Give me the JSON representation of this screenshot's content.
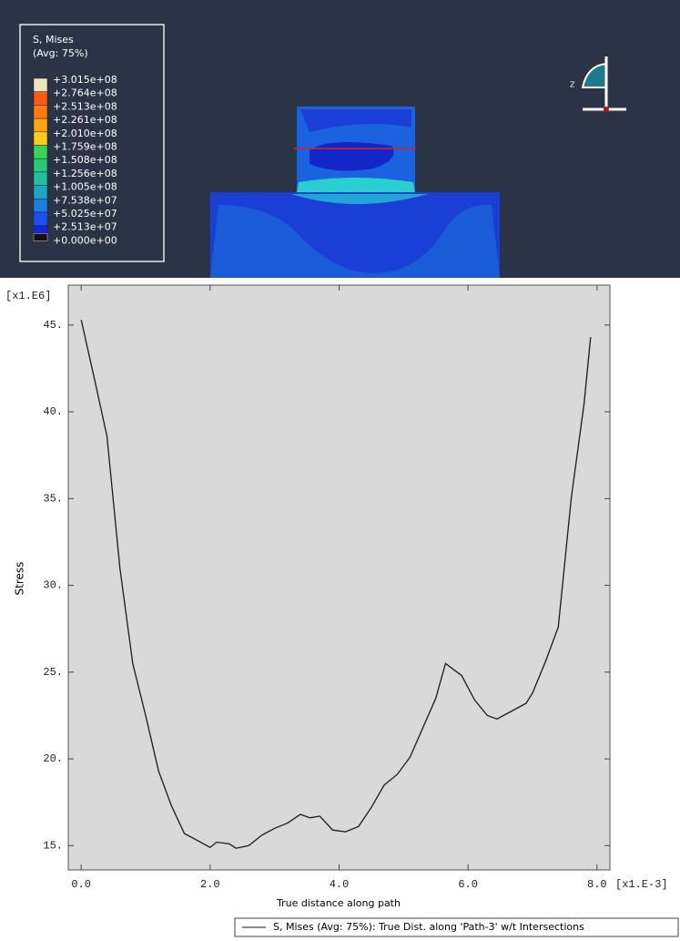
{
  "viewport": {
    "legend_title": "S, Mises",
    "legend_subtitle": "(Avg: 75%)",
    "levels": [
      "+3.015e+08",
      "+2.764e+08",
      "+2.513e+08",
      "+2.261e+08",
      "+2.010e+08",
      "+1.759e+08",
      "+1.508e+08",
      "+1.256e+08",
      "+1.005e+08",
      "+7.538e+07",
      "+5.025e+07",
      "+2.513e+07",
      "+0.000e+00"
    ],
    "level_colors": [
      "#efe6bf",
      "#ff5a14",
      "#ff7c14",
      "#ffa414",
      "#ffc81e",
      "#3cd25a",
      "#2ac878",
      "#22c0a0",
      "#1ea6c8",
      "#1a7ee0",
      "#1a50f0",
      "#1426d8"
    ],
    "triad_label": "Z"
  },
  "chart_data": {
    "type": "line",
    "y_unit": "[x1.E6]",
    "x_unit": "[x1.E-3]",
    "ylabel": "Stress",
    "xlabel": "True distance along path",
    "x": [
      0.0,
      0.2,
      0.4,
      0.6,
      0.8,
      1.0,
      1.2,
      1.4,
      1.6,
      1.8,
      2.0,
      2.1,
      2.3,
      2.4,
      2.6,
      2.8,
      3.0,
      3.2,
      3.4,
      3.55,
      3.7,
      3.9,
      4.1,
      4.3,
      4.5,
      4.7,
      4.9,
      5.1,
      5.3,
      5.5,
      5.65,
      5.9,
      6.1,
      6.3,
      6.45,
      6.6,
      6.9,
      7.0,
      7.2,
      7.4,
      7.6,
      7.8,
      7.9
    ],
    "series": [
      {
        "name": "S, Mises (Avg: 75%): True Dist. along 'Path-3' w/t Intersections",
        "color": "#1a1a1a",
        "values": [
          45.3,
          42.0,
          38.6,
          31.0,
          25.5,
          22.5,
          19.3,
          17.3,
          15.7,
          15.3,
          14.9,
          15.2,
          15.1,
          14.85,
          15.0,
          15.6,
          16.0,
          16.3,
          16.8,
          16.6,
          16.7,
          15.9,
          15.8,
          16.1,
          17.2,
          18.5,
          19.1,
          20.1,
          21.8,
          23.5,
          25.5,
          24.8,
          23.4,
          22.5,
          22.3,
          22.6,
          23.2,
          23.8,
          25.6,
          27.6,
          35.0,
          40.5,
          44.3
        ]
      }
    ],
    "xlim": [
      -0.2,
      8.2
    ],
    "ylim": [
      13.6,
      47.3
    ],
    "xticks": [
      {
        "value": 0,
        "label": "0.0"
      },
      {
        "value": 2,
        "label": "2.0"
      },
      {
        "value": 4,
        "label": "4.0"
      },
      {
        "value": 6,
        "label": "6.0"
      },
      {
        "value": 8,
        "label": "8.0"
      }
    ],
    "yticks": [
      {
        "value": 15,
        "label": "15."
      },
      {
        "value": 20,
        "label": "20."
      },
      {
        "value": 25,
        "label": "25."
      },
      {
        "value": 30,
        "label": "30."
      },
      {
        "value": 35,
        "label": "35."
      },
      {
        "value": 40,
        "label": "40."
      },
      {
        "value": 45,
        "label": "45."
      }
    ],
    "plot_background": "#d9d9d9"
  }
}
